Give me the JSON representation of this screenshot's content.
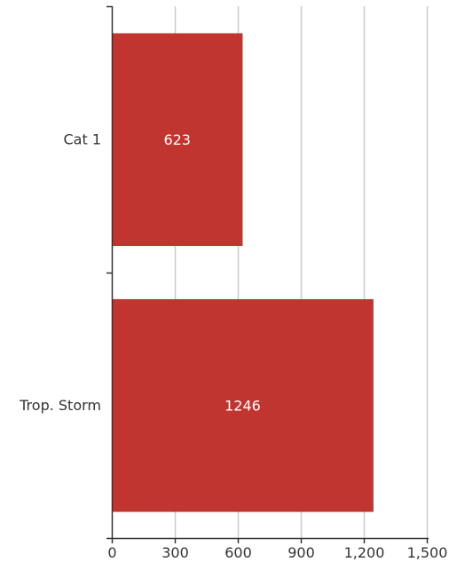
{
  "chart_data": {
    "type": "bar",
    "orientation": "horizontal",
    "categories": [
      "Cat 1",
      "Trop. Storm"
    ],
    "values": [
      623,
      1246
    ],
    "data_labels": [
      "623",
      "1246"
    ],
    "xlim": [
      0,
      1500
    ],
    "xticks": [
      0,
      300,
      600,
      900,
      1200,
      1500
    ],
    "xtick_labels": [
      "0",
      "300",
      "600",
      "900",
      "1,200",
      "1,500"
    ],
    "grid": "vertical",
    "legend": "none",
    "bar_color": "#c13530",
    "grid_color": "#cccccc",
    "axis_color": "#333333"
  }
}
